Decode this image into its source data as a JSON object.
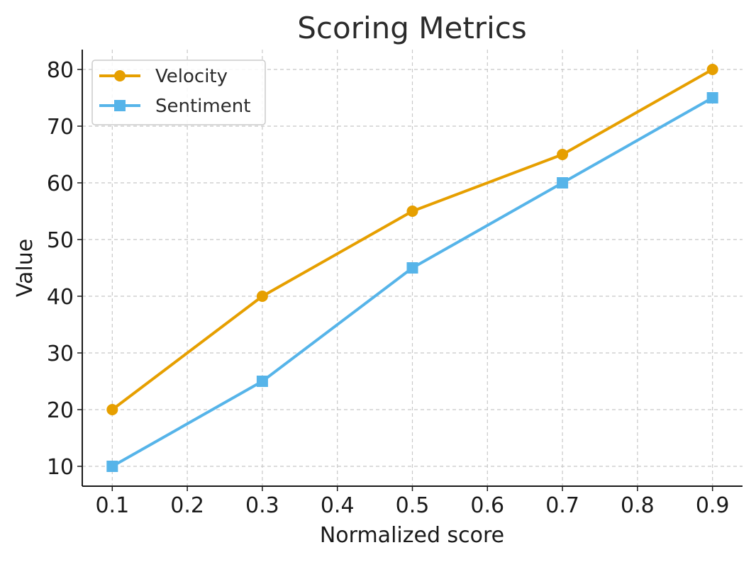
{
  "chart_data": {
    "type": "line",
    "title": "Scoring Metrics",
    "xlabel": "Normalized score",
    "ylabel": "Value",
    "x": [
      0.1,
      0.3,
      0.5,
      0.7,
      0.9
    ],
    "xticks": [
      "0.1",
      "0.2",
      "0.3",
      "0.4",
      "0.5",
      "0.6",
      "0.7",
      "0.8",
      "0.9"
    ],
    "xlim": [
      0.06,
      0.94
    ],
    "yticks": [
      "10",
      "20",
      "30",
      "40",
      "50",
      "60",
      "70",
      "80"
    ],
    "ylim": [
      6.5,
      83.5
    ],
    "grid": true,
    "legend_position": "top-left",
    "series": [
      {
        "name": "Velocity",
        "values": [
          20,
          40,
          55,
          65,
          80
        ],
        "color": "#E69F00",
        "marker": "circle"
      },
      {
        "name": "Sentiment",
        "values": [
          10,
          25,
          45,
          60,
          75
        ],
        "color": "#56B4E9",
        "marker": "square"
      }
    ]
  }
}
